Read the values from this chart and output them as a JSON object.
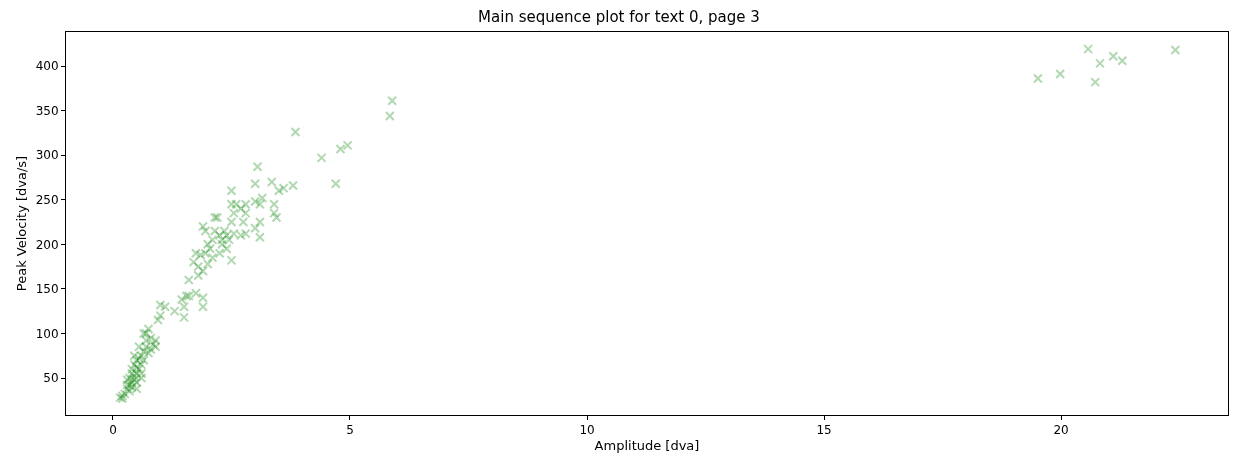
{
  "chart_data": {
    "type": "scatter",
    "title": "Main sequence plot for text 0, page 3",
    "xlabel": "Amplitude [dva]",
    "ylabel": "Peak Velocity [dva/s]",
    "xlim": [
      -0.99,
      23.52
    ],
    "ylim": [
      8.5,
      438.2
    ],
    "xticks": [
      0,
      5,
      10,
      15,
      20
    ],
    "yticks": [
      50,
      100,
      150,
      200,
      250,
      300,
      350,
      400
    ],
    "marker": "cross",
    "series": [
      {
        "color": "#008000",
        "x": [
          19.51,
          19.98,
          20.57,
          20.82,
          20.72,
          21.1,
          21.29,
          22.41,
          5.89,
          5.84,
          4.95,
          4.8,
          4.4,
          4.7,
          3.85,
          3.8,
          3.6,
          3.5,
          3.35,
          3.4,
          3.4,
          3.45,
          3.15,
          3.1,
          3.05,
          3.0,
          3.0,
          3.1,
          3.1,
          3.0,
          2.8,
          2.8,
          2.7,
          2.75,
          2.8,
          2.7,
          2.5,
          2.5,
          2.55,
          2.6,
          2.5,
          2.55,
          2.5,
          2.45,
          2.4,
          2.4,
          2.35,
          2.3,
          2.3,
          2.25,
          2.25,
          2.2,
          2.15,
          2.15,
          2.1,
          2.1,
          2.05,
          2.0,
          2.0,
          1.95,
          1.9,
          1.95,
          1.9,
          1.85,
          1.9,
          1.9,
          1.8,
          1.8,
          1.75,
          1.7,
          1.75,
          1.6,
          1.6,
          1.55,
          1.5,
          1.5,
          1.45,
          1.3,
          1.1,
          1.0,
          1.0,
          0.95,
          0.9,
          0.9,
          0.85,
          0.8,
          0.8,
          0.75,
          0.7,
          0.7,
          0.75,
          0.7,
          0.65,
          0.65,
          0.6,
          0.6,
          0.6,
          0.6,
          0.55,
          0.55,
          0.5,
          0.5,
          0.5,
          0.5,
          0.5,
          0.45,
          0.45,
          0.45,
          0.4,
          0.4,
          0.4,
          0.35,
          0.35,
          0.35,
          0.3,
          0.3,
          0.25,
          0.2,
          0.2,
          0.15,
          0.65,
          0.55,
          0.45,
          0.4,
          0.3
        ],
        "values": [
          386,
          391,
          419,
          403,
          382,
          411,
          406,
          418,
          361,
          344,
          311,
          307,
          297,
          268,
          326,
          266,
          263,
          260,
          270,
          245,
          235,
          230,
          252,
          245,
          287,
          268,
          248,
          225,
          208,
          218,
          235,
          245,
          240,
          225,
          212,
          210,
          260,
          245,
          235,
          245,
          225,
          212,
          182,
          205,
          210,
          195,
          215,
          205,
          200,
          210,
          190,
          230,
          215,
          230,
          205,
          185,
          195,
          200,
          178,
          215,
          220,
          190,
          170,
          188,
          140,
          130,
          175,
          165,
          190,
          180,
          145,
          160,
          142,
          142,
          130,
          118,
          138,
          125,
          130,
          132,
          120,
          115,
          92,
          85,
          88,
          95,
          82,
          105,
          100,
          92,
          78,
          85,
          80,
          70,
          75,
          65,
          55,
          50,
          72,
          60,
          70,
          62,
          55,
          45,
          38,
          65,
          52,
          48,
          55,
          45,
          40,
          50,
          42,
          35,
          48,
          38,
          32,
          30,
          27,
          28,
          100,
          85,
          75,
          60,
          42
        ]
      }
    ]
  }
}
